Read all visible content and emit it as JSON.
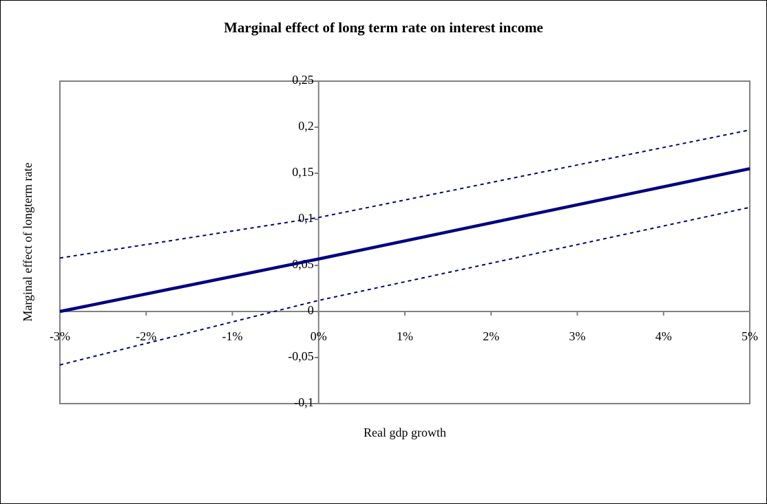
{
  "chart_data": {
    "type": "line",
    "title": "Marginal effect of long term rate on interest income",
    "x_label": "Real gdp growth",
    "y_label": "Marginal effect of longterm rate",
    "x": [
      -3,
      0,
      5
    ],
    "series": [
      {
        "color": "#000080",
        "style": "dotted",
        "values": [
          0.058,
          0.102,
          0.197
        ]
      },
      {
        "color": "#000080",
        "style": "solid",
        "values": [
          0,
          0.057,
          0.155
        ]
      },
      {
        "color": "#000080",
        "style": "dotted",
        "values": [
          -0.058,
          0.012,
          0.113
        ]
      }
    ],
    "xlim": [
      -3,
      5
    ],
    "xticks": [
      {
        "value": -3,
        "label": "-3%"
      },
      {
        "value": -2,
        "label": "-2%"
      },
      {
        "value": -1,
        "label": "-1%"
      },
      {
        "value": 0,
        "label": "0%"
      },
      {
        "value": 1,
        "label": "1%"
      },
      {
        "value": 2,
        "label": "2%"
      },
      {
        "value": 3,
        "label": "3%"
      },
      {
        "value": 4,
        "label": "4%"
      },
      {
        "value": 5,
        "label": "5%"
      }
    ],
    "ylim": [
      -0.1,
      0.25
    ],
    "yticks": [
      {
        "value": -0.1,
        "label": "-0,1"
      },
      {
        "value": -0.05,
        "label": "-0,05"
      },
      0,
      {
        "value": 0.05,
        "label": "0,05"
      },
      {
        "value": 0.1,
        "label": "0,1"
      },
      {
        "value": 0.15,
        "label": "0,15"
      },
      {
        "value": 0.2,
        "label": "0,2"
      },
      {
        "value": 0.25,
        "label": "0,25"
      }
    ],
    "grid": false
  }
}
